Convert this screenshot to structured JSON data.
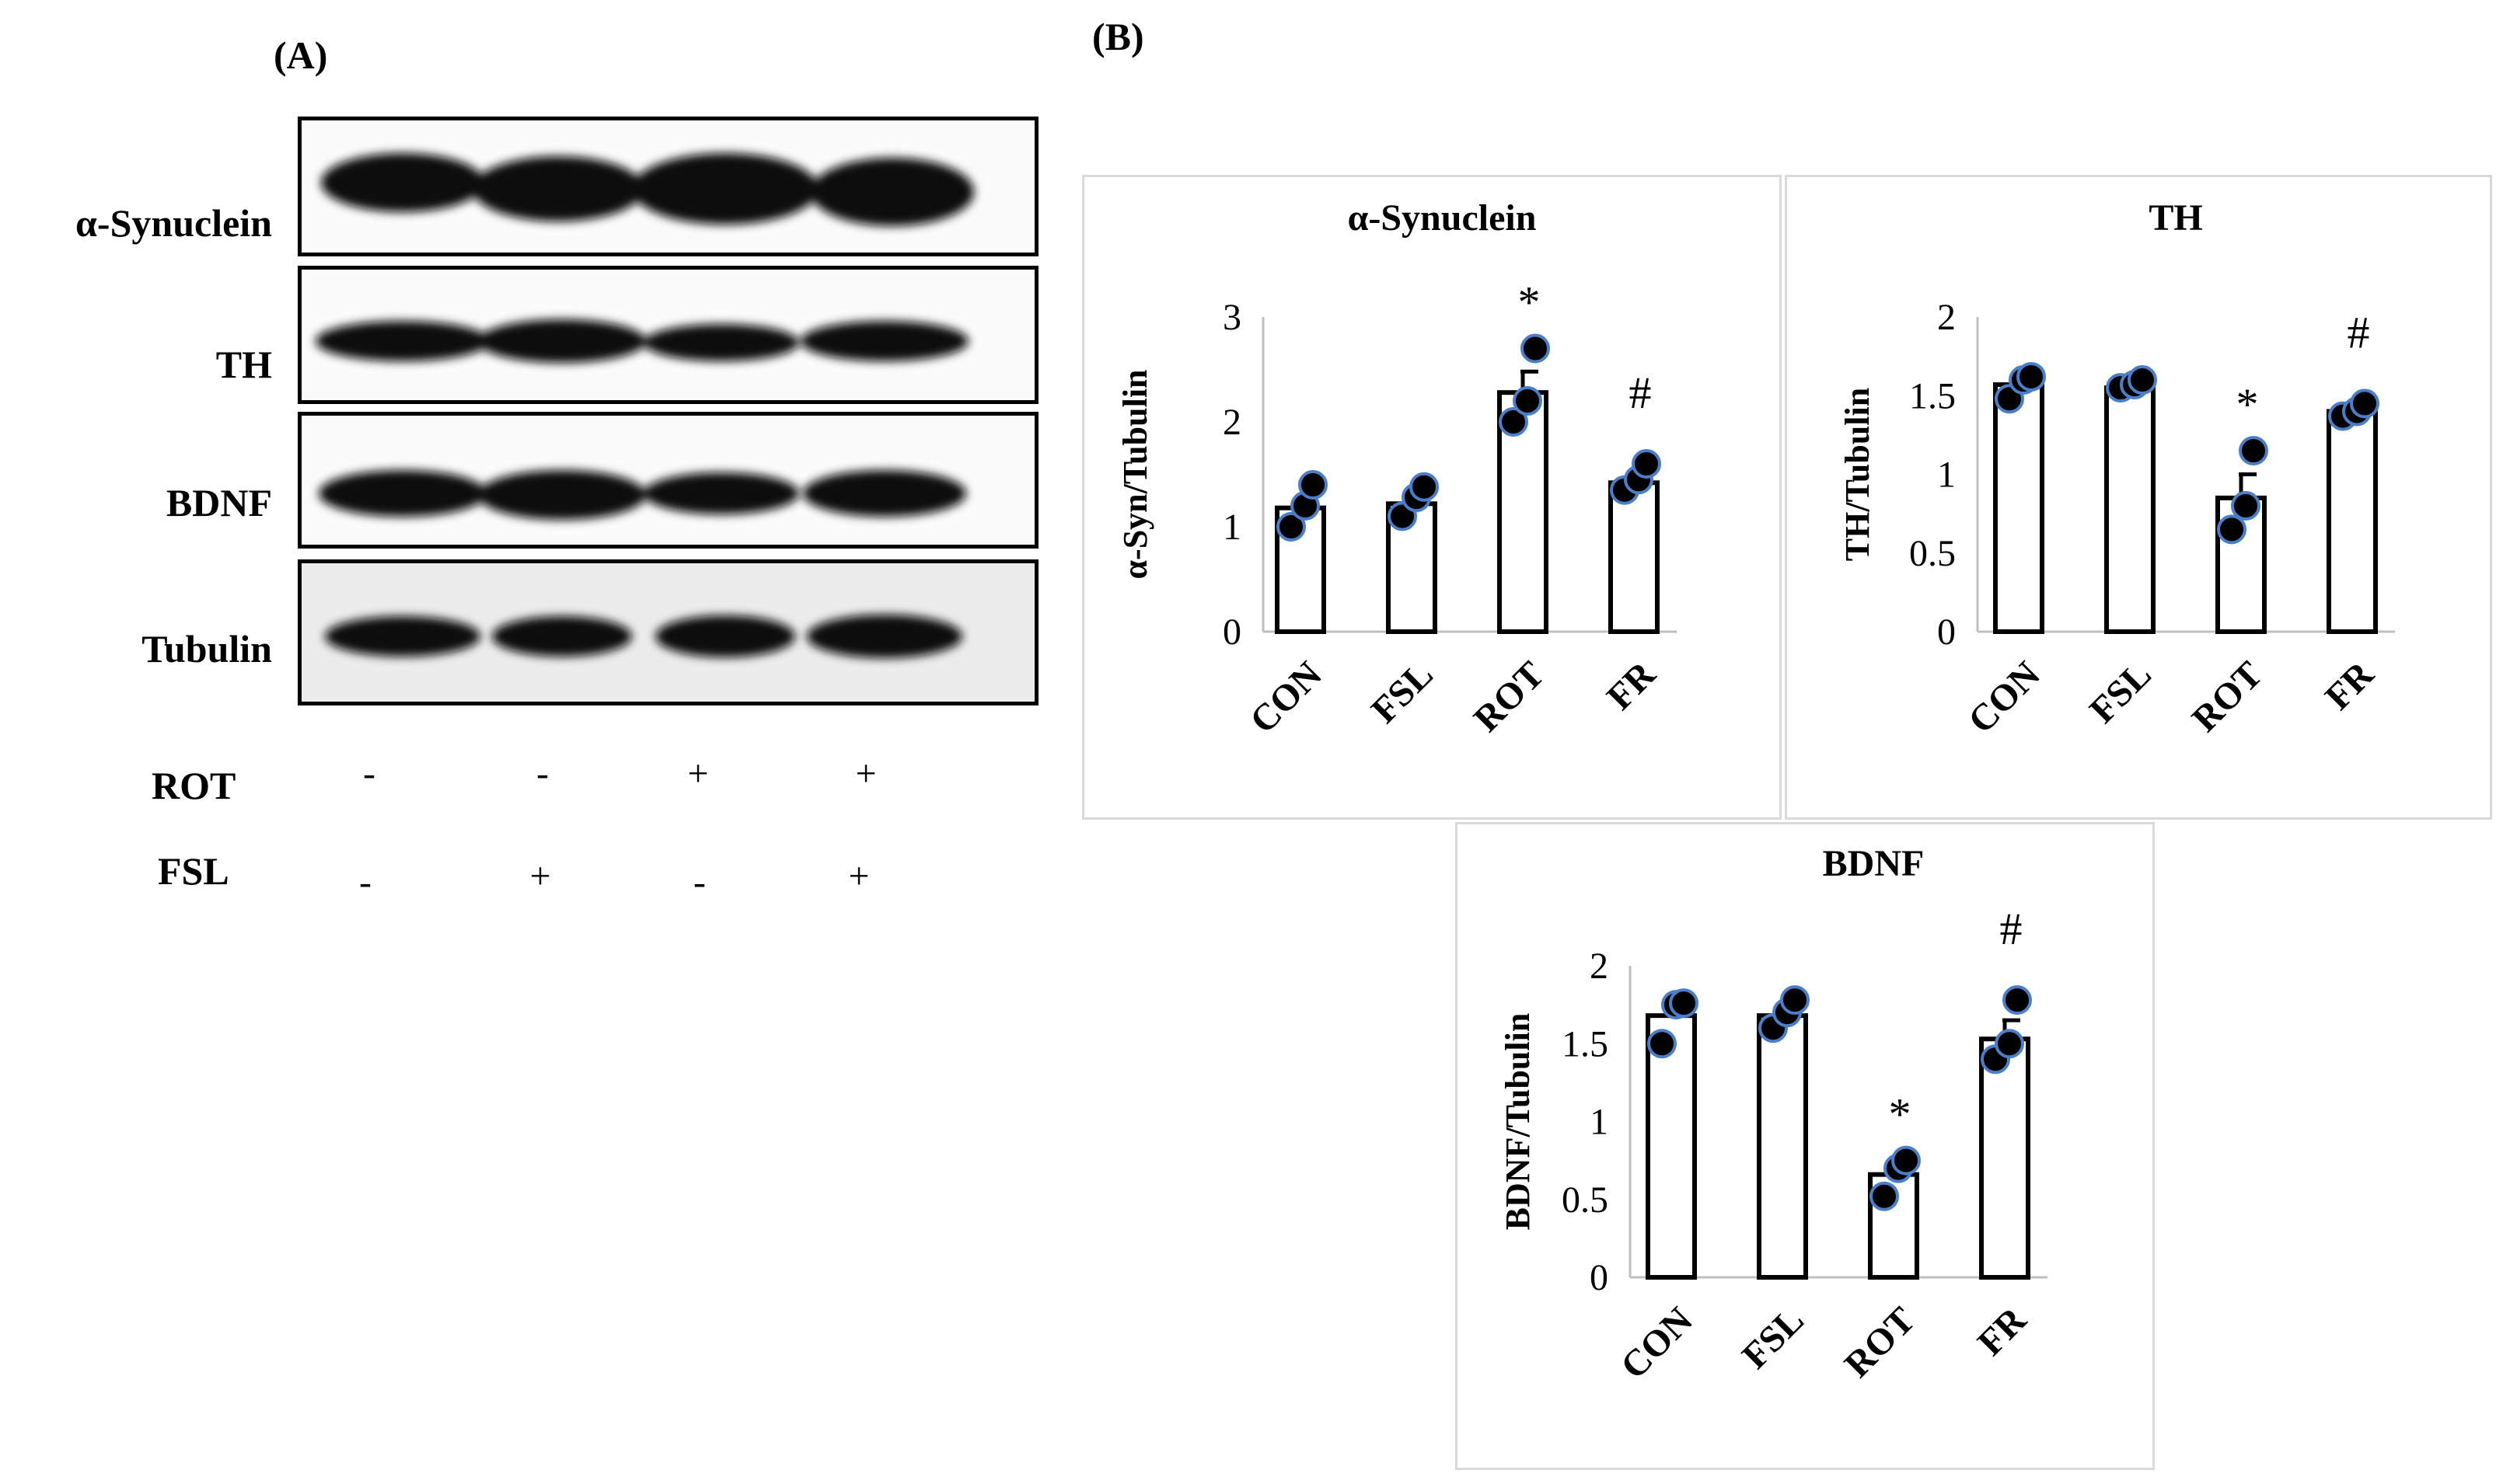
{
  "panelA": {
    "label": "(A)",
    "blots": [
      {
        "name": "α-Synuclein"
      },
      {
        "name": "TH"
      },
      {
        "name": "BDNF"
      },
      {
        "name": "Tubulin"
      }
    ],
    "conditions": [
      {
        "name": "ROT",
        "signs": [
          "-",
          "-",
          "+",
          "+"
        ]
      },
      {
        "name": "FSL",
        "signs": [
          "-",
          "+",
          "-",
          "+"
        ]
      }
    ]
  },
  "panelB": {
    "label": "(B)"
  },
  "colors": {
    "bar_fill": "#ffffff",
    "bar_stroke": "#000000",
    "point_fill": "#000000",
    "point_stroke": "#4a7ec9",
    "frame": "#d9d9d9"
  },
  "chart_data": [
    {
      "type": "bar",
      "title": "α-Synuclein",
      "ylabel": "α-Syn/Tubulin",
      "categories": [
        "CON",
        "FSL",
        "ROT",
        "FR"
      ],
      "values": [
        1.18,
        1.22,
        2.28,
        1.42
      ],
      "errors": [
        0.12,
        0.1,
        0.2,
        0.1
      ],
      "points": [
        [
          1.0,
          1.2,
          1.4
        ],
        [
          1.1,
          1.28,
          1.38
        ],
        [
          2.0,
          2.2,
          2.7
        ],
        [
          1.35,
          1.45,
          1.6
        ]
      ],
      "annotations": [
        "",
        "",
        "*",
        "#"
      ],
      "ylim": [
        0,
        3
      ],
      "yticks": [
        "0",
        "1",
        "2",
        "3"
      ],
      "ytick_values": [
        0,
        1,
        2,
        3
      ]
    },
    {
      "type": "bar",
      "title": "TH",
      "ylabel": "TH/Tubulin",
      "categories": [
        "CON",
        "FSL",
        "ROT",
        "FR"
      ],
      "values": [
        1.57,
        1.55,
        0.85,
        1.4
      ],
      "errors": [
        0.05,
        0.03,
        0.15,
        0.04
      ],
      "points": [
        [
          1.48,
          1.6,
          1.62
        ],
        [
          1.55,
          1.57,
          1.6
        ],
        [
          0.65,
          0.8,
          1.15
        ],
        [
          1.37,
          1.4,
          1.45
        ]
      ],
      "annotations": [
        "",
        "",
        "*",
        "#"
      ],
      "ylim": [
        0,
        2
      ],
      "yticks": [
        "0",
        "0.5",
        "1",
        "1.5",
        "2"
      ],
      "ytick_values": [
        0,
        0.5,
        1,
        1.5,
        2
      ]
    },
    {
      "type": "bar",
      "title": "BDNF",
      "ylabel": "BDNF/Tubulin",
      "categories": [
        "CON",
        "FSL",
        "ROT",
        "FR"
      ],
      "values": [
        1.68,
        1.68,
        0.66,
        1.53
      ],
      "errors": [
        0.08,
        0.05,
        0.05,
        0.12
      ],
      "points": [
        [
          1.5,
          1.75,
          1.76
        ],
        [
          1.6,
          1.7,
          1.78
        ],
        [
          0.52,
          0.7,
          0.75
        ],
        [
          1.4,
          1.5,
          1.78
        ]
      ],
      "annotations": [
        "",
        "",
        "*",
        "#"
      ],
      "ylim": [
        0,
        2
      ],
      "yticks": [
        "0",
        "0.5",
        "1",
        "1.5",
        "2"
      ],
      "ytick_values": [
        0,
        0.5,
        1,
        1.5,
        2
      ]
    }
  ]
}
